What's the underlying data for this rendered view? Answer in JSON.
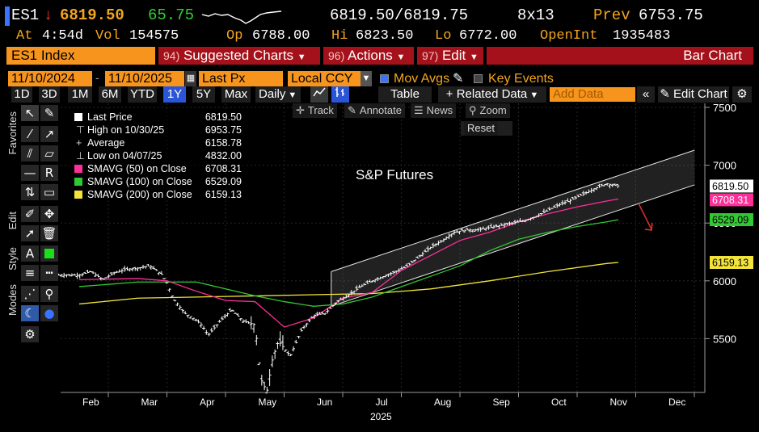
{
  "header": {
    "ticker": "ES1",
    "arrow": "↓",
    "last": "6819.50",
    "change": "65.75",
    "bid_ask": "6819.50/6819.75",
    "size": "8x13",
    "prev_label": "Prev",
    "prev": "6753.75",
    "at_label": "At",
    "time": "4:54d",
    "vol_label": "Vol",
    "vol": "154575",
    "op_label": "Op",
    "op": "6788.00",
    "hi_label": "Hi",
    "hi": "6823.50",
    "lo_label": "Lo",
    "lo": "6772.00",
    "oi_label": "OpenInt",
    "oi": "1935483"
  },
  "menu": {
    "security": "ES1 Index",
    "suggested_num": "94)",
    "suggested": "Suggested Charts",
    "actions_num": "96)",
    "actions": "Actions",
    "edit_num": "97)",
    "edit": "Edit",
    "chart_type": "Bar Chart"
  },
  "settings": {
    "start_date": "11/10/2024",
    "end_date": "11/10/2025",
    "field": "Last Px",
    "currency": "Local CCY",
    "mov_avgs": "Mov Avgs",
    "key_events": "Key Events"
  },
  "toolbar": {
    "ranges": [
      "1D",
      "3D",
      "1M",
      "6M",
      "YTD",
      "1Y",
      "5Y",
      "Max"
    ],
    "selected_range": "1Y",
    "frequency": "Daily",
    "table": "Table",
    "related": "+ Related Data",
    "add_data_placeholder": "Add Data",
    "edit_chart": "Edit Chart"
  },
  "tabs": {
    "favorites": "Favorites",
    "edit": "Edit",
    "style": "Style",
    "modes": "Modes"
  },
  "chart_tools": {
    "track": "Track",
    "annotate": "Annotate",
    "news": "News",
    "zoom": "Zoom",
    "reset": "Reset"
  },
  "colors": {
    "price": "#ffffff",
    "sma50": "#ff2f9a",
    "sma100": "#32c832",
    "sma200": "#f2e43a",
    "channel": "#e8e8e8",
    "arrow": "#e03030"
  },
  "chart_data": {
    "type": "bar",
    "title": "S&P Futures",
    "y_axis": {
      "range": [
        5000,
        7550
      ],
      "ticks": [
        5500,
        6000,
        6500,
        7000,
        7500
      ]
    },
    "x_axis": {
      "months": [
        "Feb",
        "Mar",
        "Apr",
        "May",
        "Jun",
        "Jul",
        "Aug",
        "Sep",
        "Oct",
        "Nov",
        "Dec"
      ],
      "year_label": "2025"
    },
    "legend": [
      {
        "name": "Last Price",
        "value": "6819.50",
        "color": "#ffffff"
      },
      {
        "name": "High on 10/30/25",
        "value": "6953.75",
        "color": ""
      },
      {
        "name": "Average",
        "value": "6158.78",
        "color": ""
      },
      {
        "name": "Low on 04/07/25",
        "value": "4832.00",
        "color": ""
      },
      {
        "name": "SMAVG (50)  on Close",
        "value": "6708.31",
        "color": "#ff2f9a"
      },
      {
        "name": "SMAVG (100)  on Close",
        "value": "6529.09",
        "color": "#32c832"
      },
      {
        "name": "SMAVG (200)  on Close",
        "value": "6159.13",
        "color": "#f2e43a"
      }
    ],
    "price_labels": [
      {
        "value": "6819.50",
        "level": 6819.5,
        "bg": "#ffffff",
        "fg": "#000000"
      },
      {
        "value": "6708.31",
        "level": 6708.31,
        "bg": "#ff2f9a",
        "fg": "#ffffff"
      },
      {
        "value": "6529.09",
        "level": 6529.09,
        "bg": "#32c832",
        "fg": "#000000"
      },
      {
        "value": "6159.13",
        "level": 6159.13,
        "bg": "#f2e43a",
        "fg": "#000000"
      }
    ],
    "price_series": {
      "month_index": [
        0.0,
        0.2,
        0.4,
        0.6,
        0.8,
        1.0,
        1.2,
        1.4,
        1.5,
        1.6,
        1.8,
        2.0,
        2.1,
        2.2,
        2.4,
        2.6,
        2.8,
        3.0,
        3.1,
        3.2,
        3.3,
        3.4,
        3.6,
        3.8,
        4.0,
        4.2,
        4.4,
        4.6,
        4.8,
        5.0,
        5.2,
        5.4,
        5.6,
        5.8,
        6.0,
        6.2,
        6.4,
        6.6,
        6.8,
        7.0,
        7.2,
        7.4,
        7.6,
        7.8,
        8.0,
        8.2,
        8.4,
        8.6,
        8.8,
        9.0,
        9.2
      ],
      "close": [
        6050,
        6080,
        6010,
        6070,
        6100,
        6110,
        6130,
        6060,
        5980,
        5850,
        5720,
        5660,
        5610,
        5530,
        5650,
        5750,
        5650,
        5620,
        5150,
        5040,
        5330,
        5480,
        5350,
        5580,
        5700,
        5720,
        5820,
        5880,
        5950,
        6000,
        6040,
        6080,
        6130,
        6210,
        6290,
        6350,
        6420,
        6440,
        6440,
        6460,
        6480,
        6500,
        6520,
        6560,
        6610,
        6660,
        6700,
        6750,
        6800,
        6840,
        6819.5
      ]
    },
    "sma50": {
      "month_index": [
        0.0,
        1.0,
        1.5,
        2.0,
        2.5,
        3.0,
        3.5,
        4.0,
        4.5,
        5.0,
        5.5,
        6.0,
        6.5,
        7.0,
        7.5,
        8.0,
        8.5,
        9.0,
        9.2
      ],
      "values": [
        6010,
        6020,
        6000,
        5910,
        5830,
        5820,
        5600,
        5680,
        5850,
        5900,
        6090,
        6220,
        6350,
        6420,
        6510,
        6580,
        6640,
        6690,
        6708.31
      ]
    },
    "sma100": {
      "month_index": [
        0.0,
        1.0,
        2.0,
        3.0,
        3.5,
        4.0,
        4.5,
        5.0,
        5.5,
        6.0,
        6.5,
        7.0,
        7.5,
        8.0,
        8.5,
        9.0,
        9.2
      ],
      "values": [
        5950,
        5990,
        5990,
        5870,
        5820,
        5780,
        5800,
        5860,
        5950,
        6040,
        6130,
        6260,
        6360,
        6420,
        6470,
        6510,
        6529.09
      ]
    },
    "sma200": {
      "month_index": [
        0.0,
        1.0,
        2.0,
        3.0,
        4.0,
        5.0,
        6.0,
        7.0,
        8.0,
        9.0,
        9.2
      ],
      "values": [
        5800,
        5850,
        5860,
        5870,
        5880,
        5890,
        5930,
        6000,
        6080,
        6150,
        6159.13
      ]
    },
    "channel": {
      "start_index": 4.3,
      "end_index": 10.5,
      "upper": [
        6080,
        7130
      ],
      "lower": [
        5780,
        6830
      ]
    }
  }
}
